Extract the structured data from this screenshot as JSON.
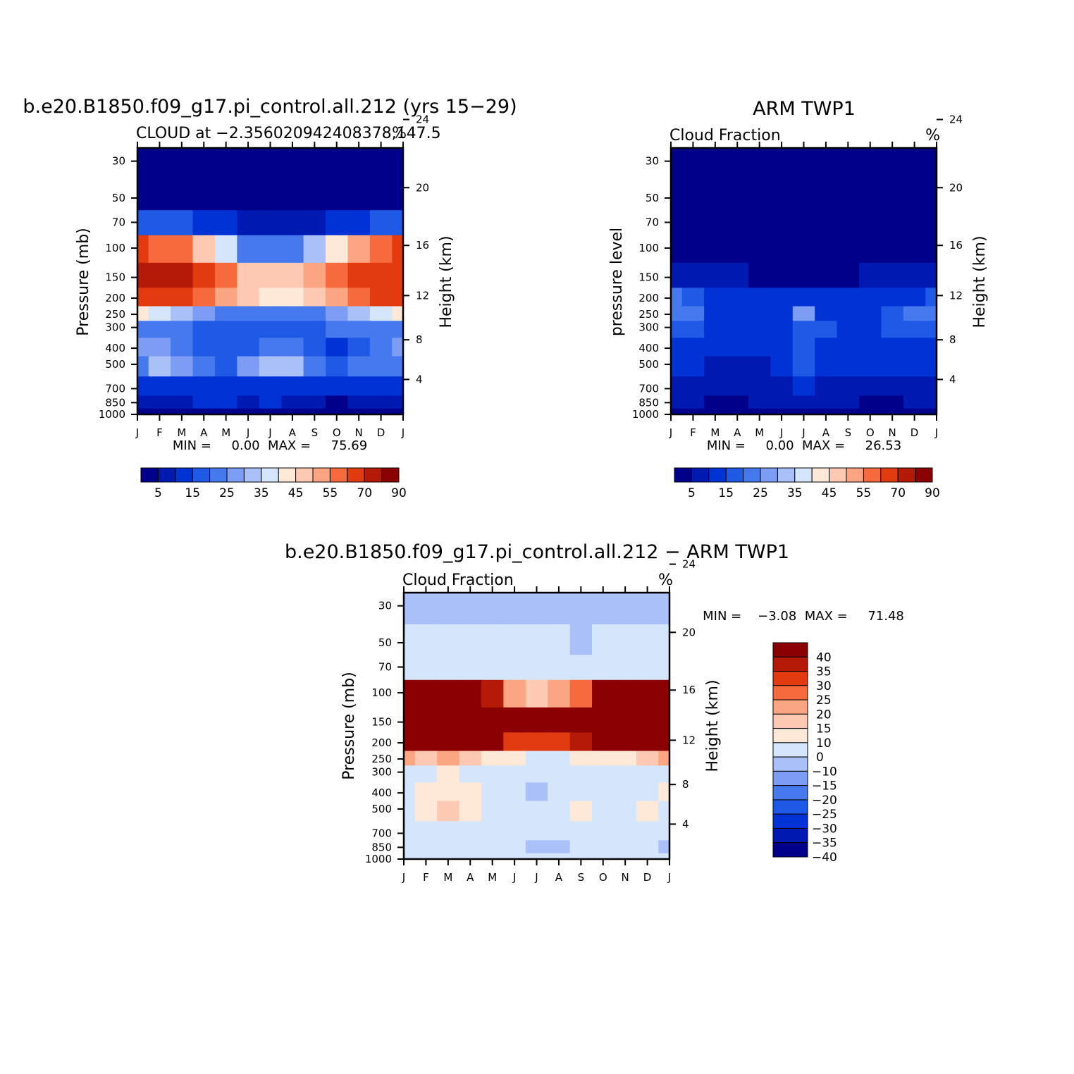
{
  "chart_data": [
    {
      "type": "heatmap",
      "panel": "model",
      "title": "b.e20.B1850.f09_g17.pi_control.all.212 (yrs 15−29)",
      "subtitle_left": "CLOUD at −2.356020942408378,147.5",
      "subtitle_right": "%",
      "xlabel": "",
      "ylabel": "Pressure (mb)",
      "ylabel_right": "Height (km)",
      "x_ticks": [
        "J",
        "F",
        "M",
        "A",
        "M",
        "J",
        "J",
        "A",
        "S",
        "O",
        "N",
        "D",
        "J"
      ],
      "y_ticks": [
        30,
        50,
        70,
        100,
        150,
        200,
        250,
        300,
        400,
        500,
        700,
        850,
        1000
      ],
      "y_scale": "log",
      "ylim": [
        1000,
        25
      ],
      "y_right_ticks": [
        24,
        20,
        16,
        12,
        8,
        4
      ],
      "stats_text": "MIN =     0.00  MAX =     75.69",
      "colorbar": {
        "orientation": "horizontal",
        "labels": [
          "5",
          "15",
          "25",
          "35",
          "45",
          "55",
          "70",
          "90"
        ],
        "colors": [
          "#00008b",
          "#0019b0",
          "#0032d6",
          "#1e5ae6",
          "#4678ee",
          "#7d9cf4",
          "#aac0f8",
          "#d5e6fc",
          "#fee8d8",
          "#fec9b2",
          "#fca583",
          "#f76a3d",
          "#e13b0f",
          "#b51a09",
          "#8b0000"
        ]
      },
      "z_levels_pct": [
        0,
        5,
        10,
        15,
        20,
        25,
        30,
        35,
        40,
        45,
        50,
        55,
        60,
        70,
        80,
        90
      ],
      "z_values_pct": [
        [
          0,
          0,
          0,
          0,
          0,
          0,
          0,
          0,
          0,
          0,
          0,
          0,
          0
        ],
        [
          0,
          0,
          0,
          0,
          0,
          0,
          0,
          0,
          0,
          0,
          0,
          0,
          0
        ],
        [
          16,
          16,
          15,
          12,
          10,
          6,
          5,
          5,
          6,
          10,
          12,
          15,
          16
        ],
        [
          60,
          58,
          55,
          48,
          36,
          24,
          20,
          22,
          30,
          44,
          52,
          58,
          60
        ],
        [
          72,
          75.69,
          74,
          65,
          55,
          47,
          45,
          46,
          50,
          58,
          62,
          64,
          66
        ],
        [
          62,
          65,
          64,
          58,
          50,
          45,
          44,
          44,
          46,
          54,
          58,
          60,
          60
        ],
        [
          40,
          38,
          34,
          28,
          24,
          22,
          22,
          22,
          24,
          28,
          32,
          38,
          40
        ],
        [
          22,
          24,
          22,
          18,
          16,
          16,
          16,
          16,
          18,
          20,
          22,
          24,
          22
        ],
        [
          26,
          28,
          22,
          18,
          16,
          18,
          22,
          24,
          18,
          12,
          18,
          24,
          26
        ],
        [
          24,
          32,
          26,
          20,
          16,
          26,
          30,
          34,
          24,
          18,
          22,
          24,
          24
        ],
        [
          10,
          10,
          12,
          14,
          14,
          10,
          10,
          12,
          12,
          12,
          12,
          12,
          10
        ],
        [
          8,
          6,
          8,
          10,
          10,
          8,
          10,
          8,
          8,
          4,
          8,
          8,
          8
        ],
        [
          4,
          4,
          4,
          4,
          4,
          4,
          4,
          4,
          4,
          4,
          4,
          4,
          4
        ]
      ]
    },
    {
      "type": "heatmap",
      "panel": "obs",
      "title": "ARM TWP1",
      "subtitle_left": "Cloud Fraction",
      "subtitle_right": "%",
      "xlabel": "",
      "ylabel": "pressure level",
      "ylabel_right": "Height (km)",
      "x_ticks": [
        "J",
        "F",
        "M",
        "A",
        "M",
        "J",
        "J",
        "A",
        "S",
        "O",
        "N",
        "D",
        "J"
      ],
      "y_ticks": [
        30,
        50,
        70,
        100,
        150,
        200,
        250,
        300,
        400,
        500,
        700,
        850,
        1000
      ],
      "y_scale": "log",
      "ylim": [
        1000,
        25
      ],
      "y_right_ticks": [
        24,
        20,
        16,
        12,
        8,
        4
      ],
      "stats_text": "MIN =     0.00  MAX =     26.53",
      "colorbar": {
        "orientation": "horizontal",
        "labels": [
          "5",
          "15",
          "25",
          "35",
          "45",
          "55",
          "70",
          "90"
        ],
        "colors": [
          "#00008b",
          "#0019b0",
          "#0032d6",
          "#1e5ae6",
          "#4678ee",
          "#7d9cf4",
          "#aac0f8",
          "#d5e6fc",
          "#fee8d8",
          "#fec9b2",
          "#fca583",
          "#f76a3d",
          "#e13b0f",
          "#b51a09",
          "#8b0000"
        ]
      },
      "z_levels_pct": [
        0,
        5,
        10,
        15,
        20,
        25,
        30,
        35,
        40,
        45,
        50,
        55,
        60,
        70,
        80,
        90
      ],
      "z_values_pct": [
        [
          0,
          0,
          0,
          0,
          0,
          0,
          0,
          0,
          0,
          0,
          0,
          0,
          0
        ],
        [
          0,
          0,
          0,
          0,
          0,
          0,
          0,
          0,
          0,
          0,
          0,
          0,
          0
        ],
        [
          0,
          0,
          0,
          0,
          0,
          0,
          0,
          0,
          0,
          0,
          0,
          0,
          0
        ],
        [
          1,
          1,
          1,
          1,
          1,
          1,
          1,
          1,
          1,
          1,
          1,
          1,
          1
        ],
        [
          6,
          6,
          6,
          5,
          4,
          4,
          4,
          4,
          4,
          5,
          6,
          6,
          6
        ],
        [
          20,
          18,
          12,
          10,
          10,
          10,
          12,
          12,
          10,
          10,
          12,
          14,
          16
        ],
        [
          22,
          20,
          14,
          12,
          14,
          12,
          26.53,
          14,
          12,
          14,
          18,
          20,
          22
        ],
        [
          18,
          16,
          12,
          12,
          12,
          14,
          18,
          16,
          14,
          14,
          16,
          18,
          18
        ],
        [
          12,
          12,
          10,
          12,
          10,
          14,
          16,
          14,
          12,
          12,
          14,
          12,
          12
        ],
        [
          10,
          12,
          8,
          6,
          8,
          12,
          16,
          14,
          10,
          10,
          12,
          12,
          10
        ],
        [
          8,
          8,
          6,
          6,
          8,
          8,
          10,
          8,
          8,
          6,
          6,
          8,
          8
        ],
        [
          6,
          6,
          4,
          4,
          6,
          6,
          6,
          6,
          6,
          4,
          4,
          6,
          6
        ],
        [
          4,
          4,
          4,
          4,
          4,
          4,
          4,
          4,
          4,
          4,
          4,
          4,
          4
        ]
      ]
    },
    {
      "type": "heatmap",
      "panel": "diff",
      "title": "b.e20.B1850.f09_g17.pi_control.all.212 − ARM TWP1",
      "subtitle_left": "Cloud Fraction",
      "subtitle_right": "%",
      "xlabel": "",
      "ylabel": "Pressure (mb)",
      "ylabel_right": "Height (km)",
      "x_ticks": [
        "J",
        "F",
        "M",
        "A",
        "M",
        "J",
        "J",
        "A",
        "S",
        "O",
        "N",
        "D",
        "J"
      ],
      "y_ticks": [
        30,
        50,
        70,
        100,
        150,
        200,
        250,
        300,
        400,
        500,
        700,
        850,
        1000
      ],
      "y_scale": "log",
      "ylim": [
        1000,
        25
      ],
      "y_right_ticks": [
        24,
        20,
        16,
        12,
        8,
        4
      ],
      "stats_text": "MIN =    −3.08  MAX =     71.48",
      "colorbar": {
        "orientation": "vertical",
        "labels": [
          "40",
          "35",
          "30",
          "25",
          "20",
          "15",
          "10",
          "0",
          "−10",
          "−15",
          "−20",
          "−25",
          "−30",
          "−35",
          "−40"
        ],
        "colors": [
          "#8b0000",
          "#b51a09",
          "#e13b0f",
          "#f76a3d",
          "#fca583",
          "#fec9b2",
          "#fee8d8",
          "#d5e6fc",
          "#aac0f8",
          "#7d9cf4",
          "#4678ee",
          "#1e5ae6",
          "#0032d6",
          "#0019b0",
          "#00008b"
        ]
      },
      "z_levels_diff": [
        -40,
        -35,
        -30,
        -25,
        -20,
        -15,
        -10,
        0,
        10,
        15,
        20,
        25,
        30,
        35,
        40
      ],
      "z_values_diff": [
        [
          -1,
          -1,
          -1,
          -1,
          -1,
          -1,
          -1,
          -1,
          -1,
          -1,
          -1,
          -1,
          -1
        ],
        [
          2,
          2,
          2,
          2,
          2,
          2,
          2,
          2,
          -1,
          2,
          2,
          2,
          2
        ],
        [
          9,
          9,
          9,
          9,
          8,
          6,
          6,
          6,
          6,
          6,
          9,
          9,
          9
        ],
        [
          56,
          56,
          55,
          48,
          36,
          22,
          18,
          21,
          28,
          42,
          50,
          55,
          58
        ],
        [
          66,
          71.48,
          70,
          62,
          52,
          45,
          42,
          42,
          48,
          54,
          58,
          60,
          60
        ],
        [
          48,
          52,
          54,
          48,
          40,
          34,
          32,
          32,
          36,
          44,
          46,
          46,
          44
        ],
        [
          22,
          18,
          20,
          16,
          12,
          10,
          8,
          8,
          12,
          14,
          14,
          18,
          22
        ],
        [
          8,
          8,
          10,
          8,
          6,
          4,
          4,
          4,
          4,
          6,
          6,
          6,
          6
        ],
        [
          8,
          14,
          14,
          10,
          6,
          4,
          -2,
          4,
          4,
          4,
          4,
          8,
          10
        ],
        [
          8,
          14,
          18,
          14,
          6,
          4,
          6,
          6,
          12,
          8,
          8,
          10,
          8
        ],
        [
          4,
          4,
          6,
          6,
          4,
          4,
          4,
          4,
          4,
          4,
          4,
          4,
          4
        ],
        [
          2,
          2,
          2,
          2,
          2,
          2,
          -2,
          -2,
          2,
          2,
          2,
          2,
          -2
        ],
        [
          2,
          2,
          2,
          2,
          2,
          2,
          2,
          2,
          2,
          2,
          2,
          2,
          2
        ]
      ]
    }
  ]
}
